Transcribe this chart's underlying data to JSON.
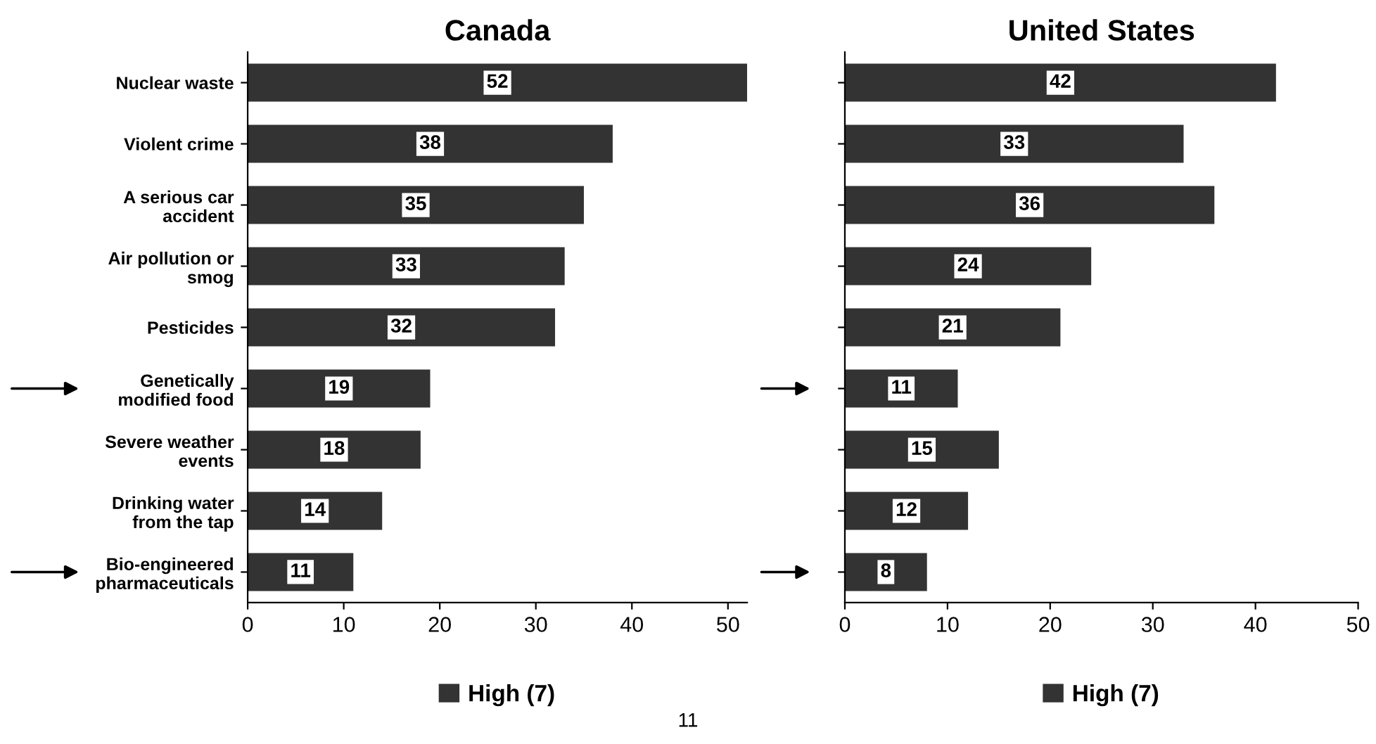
{
  "chart_data": [
    {
      "type": "bar",
      "orientation": "horizontal",
      "title": "Canada",
      "categories": [
        "Nuclear waste",
        "Violent crime",
        "A serious car accident",
        "Air pollution or smog",
        "Pesticides",
        "Genetically modified food",
        "Severe weather events",
        "Drinking water from the tap",
        "Bio-engineered pharmaceuticals"
      ],
      "series": [
        {
          "name": "High (7)",
          "color": "#333333",
          "values": [
            52,
            38,
            35,
            33,
            32,
            19,
            18,
            14,
            11
          ]
        }
      ],
      "xlim": [
        0,
        52
      ],
      "xticks": [
        0,
        10,
        20,
        30,
        40,
        50
      ],
      "data_labels": true,
      "legend": "bottom",
      "grid": false,
      "annotations": [
        "11"
      ]
    },
    {
      "type": "bar",
      "orientation": "horizontal",
      "title": "United States",
      "categories": [
        null,
        null,
        null,
        null,
        null,
        null,
        null,
        null,
        null
      ],
      "series": [
        {
          "name": "High (7)",
          "color": "#333333",
          "values": [
            42,
            33,
            36,
            24,
            21,
            11,
            15,
            12,
            8
          ]
        }
      ],
      "xlim": [
        0,
        50
      ],
      "xticks": [
        0,
        10,
        20,
        30,
        40,
        50
      ],
      "data_labels": true,
      "legend": "bottom",
      "grid": false
    }
  ]
}
